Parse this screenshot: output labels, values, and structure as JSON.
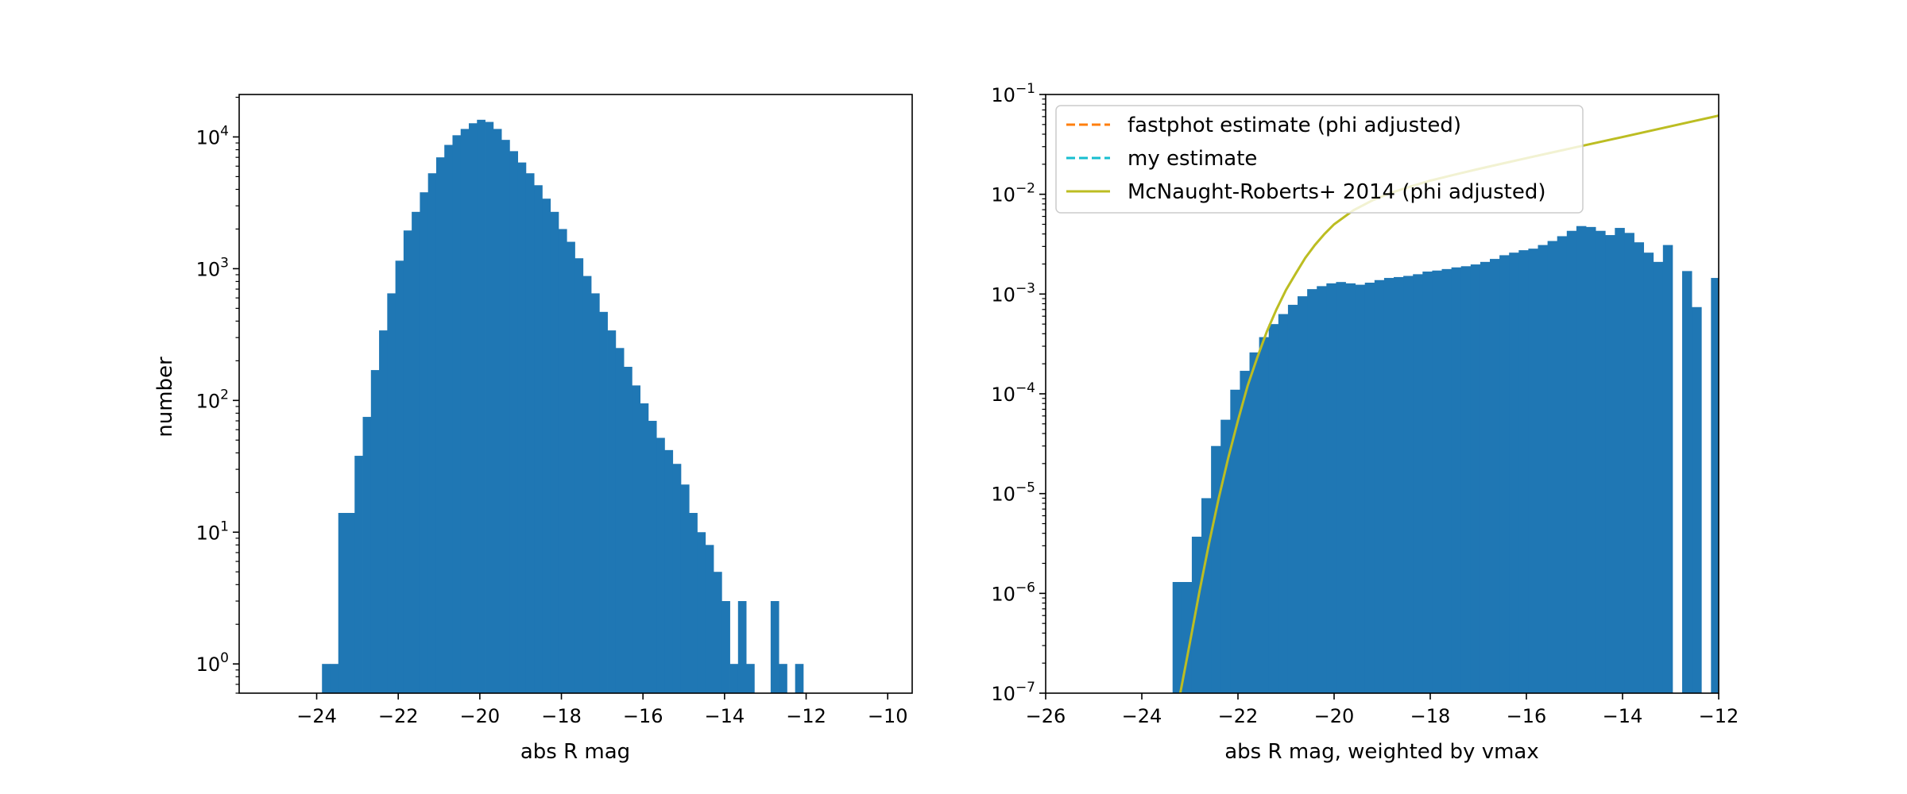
{
  "colors": {
    "bar": "#1f77b4",
    "fastphot": "#ff7f0e",
    "mine": "#17becf",
    "mcnaught": "#bcbd22",
    "axis": "#000000"
  },
  "chart_data": [
    {
      "type": "bar",
      "title": "",
      "xlabel": "abs R mag",
      "ylabel": "number",
      "yscale": "log",
      "xlim": [
        -25.9,
        -9.4
      ],
      "ylim": [
        0.6,
        21000
      ],
      "xticks": [
        -24,
        -22,
        -20,
        -18,
        -16,
        -14,
        -12,
        -10
      ],
      "xtick_labels": [
        "−24",
        "−22",
        "−20",
        "−18",
        "−16",
        "−14",
        "−12",
        "−10"
      ],
      "yticks": [
        1,
        10,
        100,
        1000,
        10000
      ],
      "ytick_labels": [
        {
          "base": "10",
          "exp": "0"
        },
        {
          "base": "10",
          "exp": "1"
        },
        {
          "base": "10",
          "exp": "2"
        },
        {
          "base": "10",
          "exp": "3"
        },
        {
          "base": "10",
          "exp": "4"
        }
      ],
      "bin_width": 0.2,
      "bin_starts": [
        -23.87,
        -23.67,
        -23.47,
        -23.27,
        -23.07,
        -22.87,
        -22.67,
        -22.47,
        -22.27,
        -22.07,
        -21.87,
        -21.67,
        -21.47,
        -21.27,
        -21.07,
        -20.87,
        -20.67,
        -20.47,
        -20.27,
        -20.07,
        -19.87,
        -19.67,
        -19.47,
        -19.27,
        -19.07,
        -18.87,
        -18.67,
        -18.47,
        -18.27,
        -18.07,
        -17.87,
        -17.67,
        -17.47,
        -17.27,
        -17.07,
        -16.87,
        -16.67,
        -16.47,
        -16.27,
        -16.07,
        -15.87,
        -15.67,
        -15.47,
        -15.27,
        -15.07,
        -14.87,
        -14.67,
        -14.47,
        -14.27,
        -14.07,
        -13.87,
        -13.67,
        -13.47,
        -13.27,
        -13.07,
        -12.87,
        -12.67,
        -12.47,
        -12.27
      ],
      "values": [
        1,
        1,
        14,
        14,
        38,
        75,
        170,
        340,
        650,
        1150,
        1950,
        2700,
        3800,
        5300,
        7000,
        8700,
        10300,
        11500,
        12700,
        13500,
        13000,
        11500,
        9500,
        7800,
        6400,
        5300,
        4300,
        3400,
        2700,
        2000,
        1600,
        1200,
        880,
        650,
        470,
        340,
        250,
        180,
        130,
        95,
        70,
        52,
        42,
        33,
        23,
        14,
        10,
        8,
        5,
        3,
        1,
        3,
        1,
        0,
        0,
        3,
        1,
        0,
        1
      ],
      "grid": false
    },
    {
      "type": "bar",
      "title": "",
      "xlabel": "abs R mag, weighted by vmax",
      "ylabel": "",
      "yscale": "log",
      "xlim": [
        -26,
        -12
      ],
      "ylim": [
        1e-07,
        0.1
      ],
      "xticks": [
        -26,
        -24,
        -22,
        -20,
        -18,
        -16,
        -14,
        -12
      ],
      "xtick_labels": [
        "−26",
        "−24",
        "−22",
        "−20",
        "−18",
        "−16",
        "−14",
        "−12"
      ],
      "yticks": [
        1e-07,
        1e-06,
        1e-05,
        0.0001,
        0.001,
        0.01,
        0.1
      ],
      "ytick_labels": [
        {
          "base": "10",
          "exp": "−7"
        },
        {
          "base": "10",
          "exp": "−6"
        },
        {
          "base": "10",
          "exp": "−5"
        },
        {
          "base": "10",
          "exp": "−4"
        },
        {
          "base": "10",
          "exp": "−3"
        },
        {
          "base": "10",
          "exp": "−2"
        },
        {
          "base": "10",
          "exp": "−1"
        }
      ],
      "bin_width": 0.2,
      "bin_starts": [
        -23.36,
        -23.16,
        -22.96,
        -22.76,
        -22.56,
        -22.36,
        -22.16,
        -21.96,
        -21.76,
        -21.56,
        -21.36,
        -21.16,
        -20.96,
        -20.76,
        -20.56,
        -20.36,
        -20.16,
        -19.96,
        -19.76,
        -19.56,
        -19.36,
        -19.16,
        -18.96,
        -18.76,
        -18.56,
        -18.36,
        -18.16,
        -17.96,
        -17.76,
        -17.56,
        -17.36,
        -17.16,
        -16.96,
        -16.76,
        -16.56,
        -16.36,
        -16.16,
        -15.96,
        -15.76,
        -15.56,
        -15.36,
        -15.16,
        -14.96,
        -14.76,
        -14.56,
        -14.36,
        -14.16,
        -13.96,
        -13.76,
        -13.56,
        -13.36,
        -13.16,
        -12.96,
        -12.76,
        -12.56,
        -12.36,
        -12.16
      ],
      "values": [
        1.3e-06,
        1.3e-06,
        3.7e-06,
        9e-06,
        3e-05,
        5.5e-05,
        0.00011,
        0.00017,
        0.00026,
        0.00037,
        0.0005,
        0.00063,
        0.00078,
        0.00095,
        0.00112,
        0.0012,
        0.00128,
        0.00132,
        0.00128,
        0.00124,
        0.0013,
        0.00138,
        0.00145,
        0.00148,
        0.00152,
        0.00158,
        0.00168,
        0.00172,
        0.00178,
        0.00185,
        0.0019,
        0.00198,
        0.0021,
        0.00225,
        0.00245,
        0.0026,
        0.00275,
        0.00285,
        0.0031,
        0.0034,
        0.0038,
        0.0043,
        0.0048,
        0.0047,
        0.0043,
        0.0039,
        0.0046,
        0.0041,
        0.0033,
        0.0026,
        0.0021,
        0.0031,
        0,
        0.0017,
        0.00074,
        0,
        0.00145
      ],
      "lines": [
        {
          "name": "fastphot estimate (phi adjusted)",
          "style": "dashed",
          "color_key": "fastphot",
          "x": [],
          "y": []
        },
        {
          "name": "my estimate",
          "style": "dashed",
          "color_key": "mine",
          "x": [],
          "y": []
        },
        {
          "name": "McNaught-Roberts+ 2014 (phi adjusted)",
          "style": "solid",
          "color_key": "mcnaught",
          "x": [
            -23.2,
            -23.0,
            -22.8,
            -22.6,
            -22.4,
            -22.2,
            -22.0,
            -21.8,
            -21.6,
            -21.4,
            -21.2,
            -21.0,
            -20.8,
            -20.6,
            -20.4,
            -20.2,
            -20.0,
            -19.6,
            -19.2,
            -18.8,
            -18.4,
            -18.0,
            -17.5,
            -17.0,
            -16.5,
            -16.0,
            -15.5,
            -15.0,
            -14.5,
            -14.0,
            -13.5,
            -13.0,
            -12.5,
            -12.0
          ],
          "y": [
            1e-07,
            3.2e-07,
            1.05e-06,
            3.2e-06,
            9e-06,
            2.3e-05,
            5.4e-05,
            0.00012,
            0.00023,
            0.00042,
            0.0007,
            0.0011,
            0.0016,
            0.0023,
            0.0031,
            0.004,
            0.005,
            0.0069,
            0.0087,
            0.0104,
            0.012,
            0.0137,
            0.0157,
            0.0179,
            0.0203,
            0.023,
            0.026,
            0.0294,
            0.0332,
            0.0375,
            0.0424,
            0.048,
            0.0543,
            0.0614
          ]
        }
      ],
      "legend": {
        "position": "upper-left",
        "entries": [
          "fastphot estimate (phi adjusted)",
          "my estimate",
          "McNaught-Roberts+ 2014 (phi adjusted)"
        ]
      },
      "grid": false
    }
  ]
}
